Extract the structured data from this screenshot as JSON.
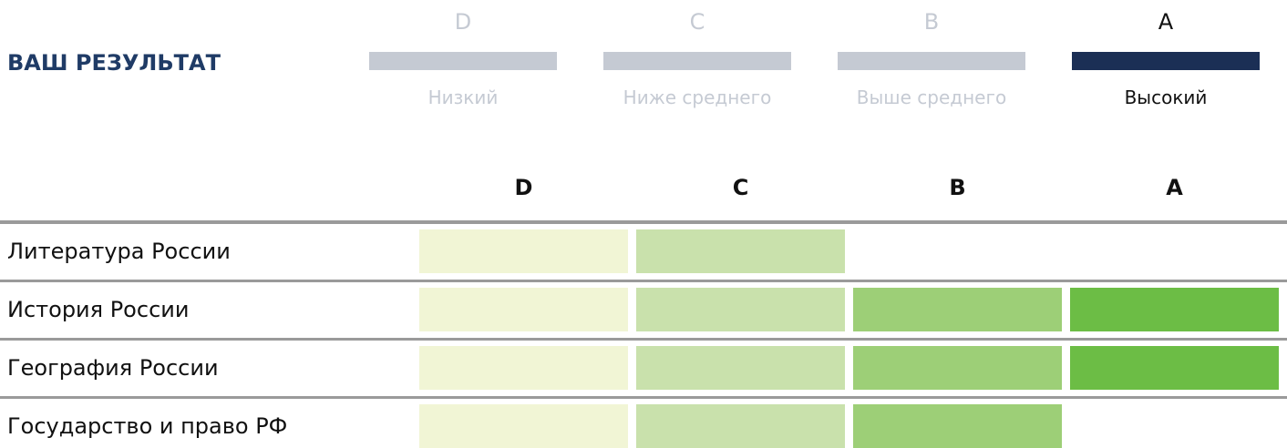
{
  "header": {
    "title": "ВАШ РЕЗУЛЬТАТ"
  },
  "legend": {
    "items": [
      {
        "letter": "D",
        "label": "Низкий",
        "active": false
      },
      {
        "letter": "C",
        "label": "Ниже среднего",
        "active": false
      },
      {
        "letter": "B",
        "label": "Выше среднего",
        "active": false
      },
      {
        "letter": "A",
        "label": "Высокий",
        "active": true
      }
    ]
  },
  "table": {
    "columns": [
      "D",
      "C",
      "B",
      "A"
    ],
    "colors": [
      "#f1f5d5",
      "#c9e1ac",
      "#9dcf77",
      "#6cbd45"
    ],
    "rows": [
      {
        "name": "Литература России",
        "filled": 2
      },
      {
        "name": "История России",
        "filled": 4
      },
      {
        "name": "География России",
        "filled": 4
      },
      {
        "name": "Государство и право РФ",
        "filled": 3
      }
    ]
  }
}
